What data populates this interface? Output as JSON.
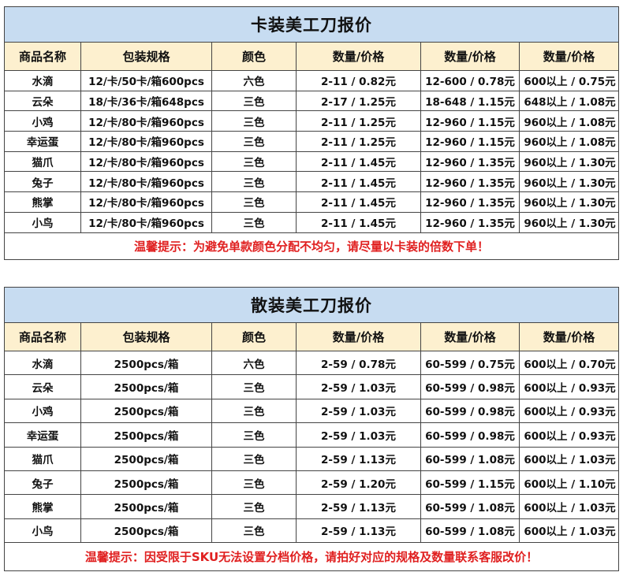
{
  "card": {
    "title": "卡装美工刀报价",
    "headers": [
      "商品名称",
      "包装规格",
      "颜色",
      "数量/价格",
      "数量/价格",
      "数量/价格"
    ],
    "rows": [
      [
        "水滴",
        "12/卡/50卡/箱600pcs",
        "六色",
        "2-11 / 0.82元",
        "12-600 / 0.78元",
        "600以上 / 0.75元"
      ],
      [
        "云朵",
        "18/卡/36卡/箱648pcs",
        "三色",
        "2-17 / 1.25元",
        "18-648 / 1.15元",
        "648以上 / 1.08元"
      ],
      [
        "小鸡",
        "12/卡/80卡/箱960pcs",
        "三色",
        "2-11 / 1.25元",
        "12-960 / 1.15元",
        "960以上 / 1.08元"
      ],
      [
        "幸运蛋",
        "12/卡/80卡/箱960pcs",
        "三色",
        "2-11 / 1.25元",
        "12-960 / 1.15元",
        "960以上 / 1.08元"
      ],
      [
        "猫爪",
        "12/卡/80卡/箱960pcs",
        "三色",
        "2-11 / 1.45元",
        "12-960 / 1.35元",
        "960以上 / 1.30元"
      ],
      [
        "兔子",
        "12/卡/80卡/箱960pcs",
        "三色",
        "2-11 / 1.45元",
        "12-960 / 1.35元",
        "960以上 / 1.30元"
      ],
      [
        "熊掌",
        "12/卡/80卡/箱960pcs",
        "三色",
        "2-11 / 1.45元",
        "12-960 / 1.35元",
        "960以上 / 1.30元"
      ],
      [
        "小鸟",
        "12/卡/80卡/箱960pcs",
        "三色",
        "2-11 / 1.45元",
        "12-960 / 1.35元",
        "960以上 / 1.30元"
      ]
    ],
    "tip": "温馨提示：为避免单款颜色分配不均匀，请尽量以卡装的倍数下单！"
  },
  "bulk": {
    "title": "散装美工刀报价",
    "headers": [
      "商品名称",
      "包装规格",
      "颜色",
      "数量/价格",
      "数量/价格",
      "数量/价格"
    ],
    "rows": [
      [
        "水滴",
        "2500pcs/箱",
        "六色",
        "2-59 / 0.78元",
        "60-599 / 0.75元",
        "600以上 / 0.70元"
      ],
      [
        "云朵",
        "2500pcs/箱",
        "三色",
        "2-59 / 1.03元",
        "60-599 / 0.98元",
        "600以上 / 0.93元"
      ],
      [
        "小鸡",
        "2500pcs/箱",
        "三色",
        "2-59 / 1.03元",
        "60-599 / 0.98元",
        "600以上 / 0.93元"
      ],
      [
        "幸运蛋",
        "2500pcs/箱",
        "三色",
        "2-59 / 1.03元",
        "60-599 / 0.98元",
        "600以上 / 0.93元"
      ],
      [
        "猫爪",
        "2500pcs/箱",
        "三色",
        "2-59 / 1.13元",
        "60-599 / 1.08元",
        "600以上 / 1.03元"
      ],
      [
        "兔子",
        "2500pcs/箱",
        "三色",
        "2-59 / 1.20元",
        "60-599 / 1.15元",
        "600以上 / 1.10元"
      ],
      [
        "熊掌",
        "2500pcs/箱",
        "三色",
        "2-59 / 1.13元",
        "60-599 / 1.08元",
        "600以上 / 1.03元"
      ],
      [
        "小鸟",
        "2500pcs/箱",
        "三色",
        "2-59 / 1.13元",
        "60-599 / 1.08元",
        "600以上 / 1.03元"
      ]
    ],
    "tip": "温馨提示：因受限于SKU无法设置分档价格，请拍好对应的规格及数量联系客服改价！"
  },
  "colors": {
    "title_bg": "#c7dcf1",
    "header_bg": "#fdf0cf",
    "tip_text": "#e02020"
  }
}
